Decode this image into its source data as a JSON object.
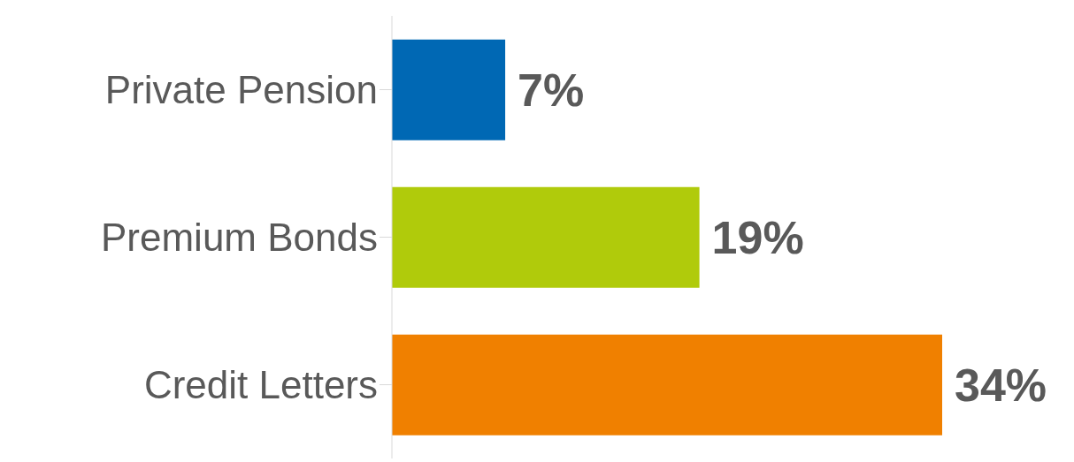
{
  "chart_data": {
    "type": "bar",
    "orientation": "horizontal",
    "categories": [
      "Private Pension",
      "Premium Bonds",
      "Credit Letters"
    ],
    "values": [
      7,
      19,
      34
    ],
    "colors": [
      "#0068b4",
      "#b0cb0b",
      "#f08000"
    ],
    "value_labels": [
      "7%",
      "19%",
      "34%"
    ]
  }
}
